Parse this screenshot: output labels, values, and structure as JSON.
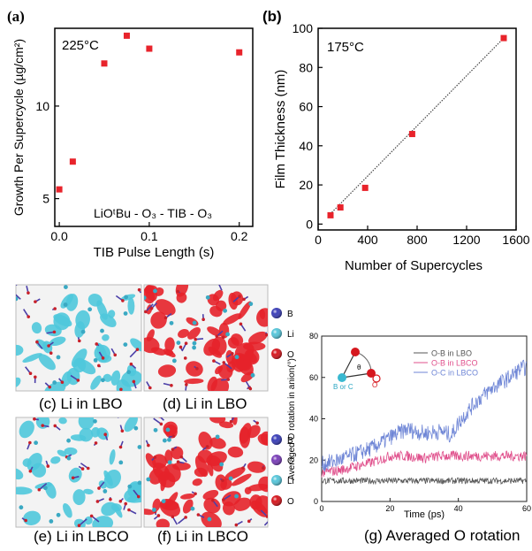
{
  "chart_data": [
    {
      "panel": "(a)",
      "type": "scatter",
      "annotation": "225°C",
      "reaction": "LiOᵗBu - O₃ - TIB - O₃",
      "xlabel": "TIB Pulse Length (s)",
      "ylabel": "Growth Per Supercycle (µg/cm²)",
      "xlim": [
        -0.005,
        0.215
      ],
      "ylim": [
        3.5,
        14.2
      ],
      "xticks": [
        "0.0",
        "0.1",
        "0.2"
      ],
      "xtick_values": [
        0.0,
        0.1,
        0.2
      ],
      "yticks": [
        "5",
        "10"
      ],
      "ytick_values": [
        5,
        10
      ],
      "marker_color": "#e8232b",
      "points": [
        {
          "x": 0.0,
          "y": 5.5
        },
        {
          "x": 0.015,
          "y": 7.0
        },
        {
          "x": 0.05,
          "y": 12.3
        },
        {
          "x": 0.075,
          "y": 13.8
        },
        {
          "x": 0.1,
          "y": 13.1
        },
        {
          "x": 0.2,
          "y": 12.9
        }
      ]
    },
    {
      "panel": "(b)",
      "type": "scatter",
      "annotation": "175°C",
      "xlabel": "Number of Supercycles",
      "ylabel": "Film Thickness (nm)",
      "xlim": [
        0,
        1600
      ],
      "ylim": [
        -3,
        100
      ],
      "xticks": [
        "0",
        "400",
        "800",
        "1200",
        "1600"
      ],
      "xtick_values": [
        0,
        400,
        800,
        1200,
        1600
      ],
      "yticks": [
        "0",
        "20",
        "40",
        "60",
        "80",
        "100"
      ],
      "ytick_values": [
        0,
        20,
        40,
        60,
        80,
        100
      ],
      "marker_color": "#e8232b",
      "fit_line": {
        "x1": 80,
        "y1": 4,
        "x2": 1500,
        "y2": 95
      },
      "points": [
        {
          "x": 100,
          "y": 4.5
        },
        {
          "x": 180,
          "y": 8.5
        },
        {
          "x": 380,
          "y": 18.5
        },
        {
          "x": 760,
          "y": 46
        },
        {
          "x": 1500,
          "y": 95
        }
      ]
    },
    {
      "panel": "(g)",
      "type": "line",
      "title": "(g) Averaged  O rotation",
      "xlabel": "Time (ps)",
      "ylabel": "Averaged O rotation in anion(°)",
      "xlim": [
        0,
        60
      ],
      "ylim": [
        0,
        80
      ],
      "xticks": [
        "0",
        "20",
        "40",
        "60"
      ],
      "xtick_values": [
        0,
        20,
        40,
        60
      ],
      "yticks": [
        "0",
        "20",
        "40",
        "60",
        "80"
      ],
      "ytick_values": [
        0,
        20,
        40,
        60,
        80
      ],
      "legend_position": "top-right",
      "series": [
        {
          "name": "O-B in LBO",
          "color": "#555555",
          "noise": 1.5,
          "points": [
            [
              0,
              10
            ],
            [
              10,
              10
            ],
            [
              20,
              10
            ],
            [
              30,
              10
            ],
            [
              40,
              10
            ],
            [
              50,
              10
            ],
            [
              60,
              10
            ]
          ]
        },
        {
          "name": "O-B in LBCO",
          "color": "#e0508c",
          "noise": 2.5,
          "points": [
            [
              0,
              14
            ],
            [
              5,
              15
            ],
            [
              10,
              17
            ],
            [
              15,
              19
            ],
            [
              20,
              22
            ],
            [
              25,
              22
            ],
            [
              30,
              21
            ],
            [
              35,
              22
            ],
            [
              40,
              22
            ],
            [
              50,
              22
            ],
            [
              60,
              22
            ]
          ]
        },
        {
          "name": "O-C in LBCO",
          "color": "#6f86d6",
          "noise": 4,
          "points": [
            [
              0,
              18
            ],
            [
              5,
              20
            ],
            [
              10,
              23
            ],
            [
              15,
              26
            ],
            [
              20,
              31
            ],
            [
              25,
              35
            ],
            [
              30,
              33
            ],
            [
              35,
              34
            ],
            [
              38,
              32
            ],
            [
              40,
              38
            ],
            [
              45,
              48
            ],
            [
              50,
              55
            ],
            [
              55,
              60
            ],
            [
              58,
              64
            ],
            [
              60,
              65
            ]
          ]
        }
      ]
    }
  ],
  "inset": {
    "label_bc": "B or C",
    "label_o": "O",
    "label_theta": "θ"
  },
  "panels": {
    "c": {
      "caption": "(c) Li in LBO",
      "color": "#4fc8dc"
    },
    "d": {
      "caption": "(d) Li in LBO",
      "color": "#e6222a"
    },
    "e": {
      "caption": "(e) Li in LBCO",
      "color": "#4fc8dc"
    },
    "f": {
      "caption": "(f) Li in LBCO",
      "color": "#e6222a"
    }
  },
  "legend_lbo": [
    {
      "label": "B",
      "color": "#3b3fb8"
    },
    {
      "label": "Li",
      "color": "#57c6da"
    },
    {
      "label": "O",
      "color": "#d6181f"
    }
  ],
  "legend_lbco": [
    {
      "label": "B",
      "color": "#3b3fb8"
    },
    {
      "label": "C",
      "color": "#7a3fb8"
    },
    {
      "label": "Li",
      "color": "#57c6da"
    },
    {
      "label": "O",
      "color": "#d6181f"
    }
  ]
}
